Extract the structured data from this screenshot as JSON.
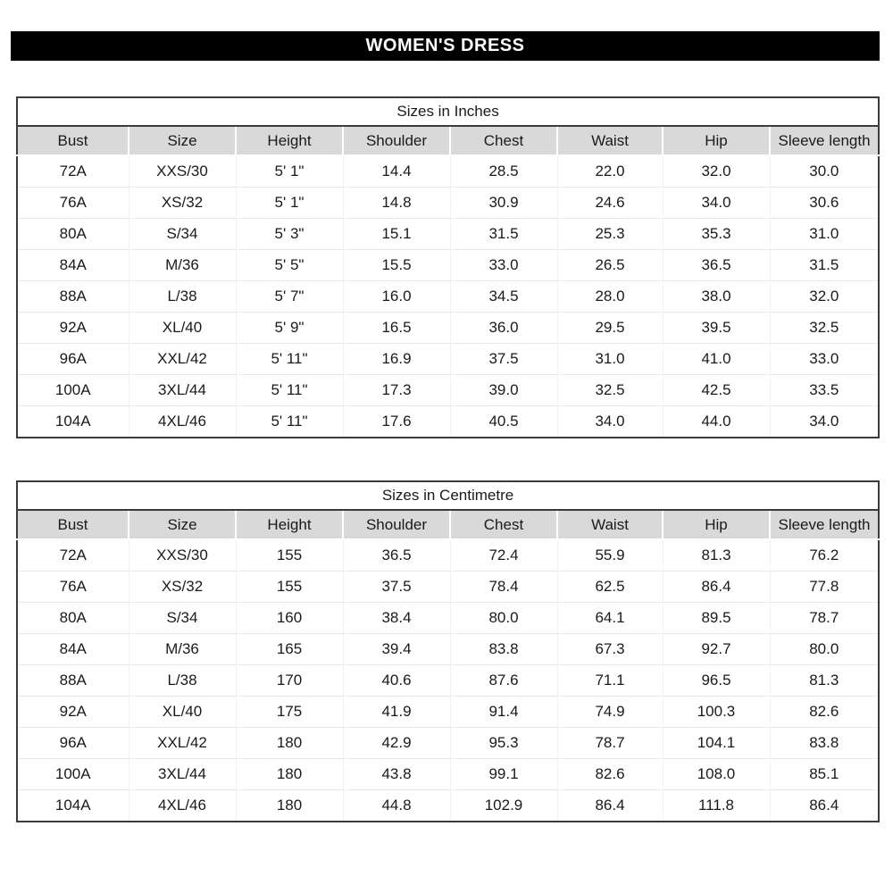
{
  "banner": {
    "title": "WOMEN'S DRESS"
  },
  "colors": {
    "banner_bg": "#000000",
    "banner_text": "#ffffff",
    "header_bg": "#d9d9d9",
    "table_border": "#3b3b3b",
    "text": "#1a1a1a"
  },
  "tables": [
    {
      "title": "Sizes in Inches",
      "columns": [
        "Bust",
        "Size",
        "Height",
        "Shoulder",
        "Chest",
        "Waist",
        "Hip",
        "Sleeve length"
      ],
      "rows": [
        [
          "72A",
          "XXS/30",
          "5' 1\"",
          "14.4",
          "28.5",
          "22.0",
          "32.0",
          "30.0"
        ],
        [
          "76A",
          "XS/32",
          "5' 1\"",
          "14.8",
          "30.9",
          "24.6",
          "34.0",
          "30.6"
        ],
        [
          "80A",
          "S/34",
          "5' 3\"",
          "15.1",
          "31.5",
          "25.3",
          "35.3",
          "31.0"
        ],
        [
          "84A",
          "M/36",
          "5' 5\"",
          "15.5",
          "33.0",
          "26.5",
          "36.5",
          "31.5"
        ],
        [
          "88A",
          "L/38",
          "5' 7\"",
          "16.0",
          "34.5",
          "28.0",
          "38.0",
          "32.0"
        ],
        [
          "92A",
          "XL/40",
          "5' 9\"",
          "16.5",
          "36.0",
          "29.5",
          "39.5",
          "32.5"
        ],
        [
          "96A",
          "XXL/42",
          "5' 11\"",
          "16.9",
          "37.5",
          "31.0",
          "41.0",
          "33.0"
        ],
        [
          "100A",
          "3XL/44",
          "5' 11\"",
          "17.3",
          "39.0",
          "32.5",
          "42.5",
          "33.5"
        ],
        [
          "104A",
          "4XL/46",
          "5' 11\"",
          "17.6",
          "40.5",
          "34.0",
          "44.0",
          "34.0"
        ]
      ]
    },
    {
      "title": "Sizes in Centimetre",
      "columns": [
        "Bust",
        "Size",
        "Height",
        "Shoulder",
        "Chest",
        "Waist",
        "Hip",
        "Sleeve length"
      ],
      "rows": [
        [
          "72A",
          "XXS/30",
          "155",
          "36.5",
          "72.4",
          "55.9",
          "81.3",
          "76.2"
        ],
        [
          "76A",
          "XS/32",
          "155",
          "37.5",
          "78.4",
          "62.5",
          "86.4",
          "77.8"
        ],
        [
          "80A",
          "S/34",
          "160",
          "38.4",
          "80.0",
          "64.1",
          "89.5",
          "78.7"
        ],
        [
          "84A",
          "M/36",
          "165",
          "39.4",
          "83.8",
          "67.3",
          "92.7",
          "80.0"
        ],
        [
          "88A",
          "L/38",
          "170",
          "40.6",
          "87.6",
          "71.1",
          "96.5",
          "81.3"
        ],
        [
          "92A",
          "XL/40",
          "175",
          "41.9",
          "91.4",
          "74.9",
          "100.3",
          "82.6"
        ],
        [
          "96A",
          "XXL/42",
          "180",
          "42.9",
          "95.3",
          "78.7",
          "104.1",
          "83.8"
        ],
        [
          "100A",
          "3XL/44",
          "180",
          "43.8",
          "99.1",
          "82.6",
          "108.0",
          "85.1"
        ],
        [
          "104A",
          "4XL/46",
          "180",
          "44.8",
          "102.9",
          "86.4",
          "111.8",
          "86.4"
        ]
      ]
    }
  ]
}
